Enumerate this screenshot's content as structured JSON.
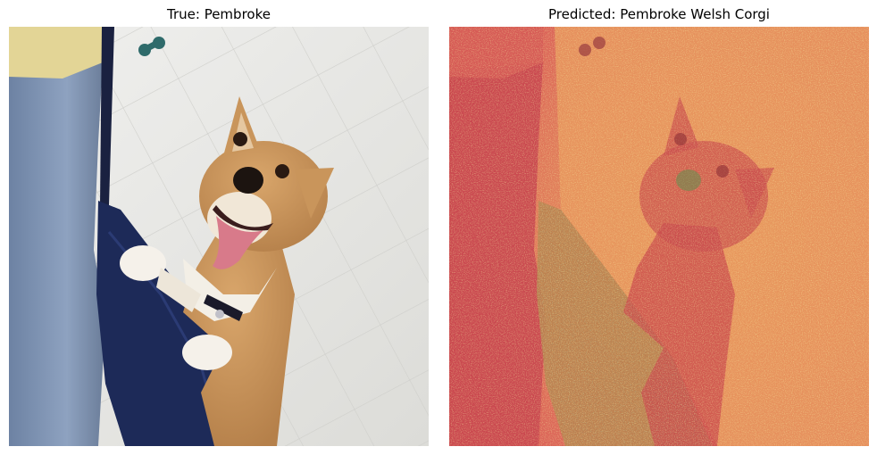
{
  "figure": {
    "left_panel": {
      "title": "True: Pembroke"
    },
    "right_panel": {
      "title": "Predicted: Pembroke Welsh Corgi"
    }
  },
  "colors": {
    "floor": "#e6e6e3",
    "jeans": "#7f93b3",
    "shirt": "#e3d596",
    "gate_fabric": "#1d2a58",
    "corgi_fur": "#c9955b",
    "corgi_white": "#f3efe6",
    "tongue": "#d87a8a",
    "heat_base": "#d95b58",
    "heat_warm": "#e9a35c",
    "heat_hot": "#e8df66",
    "heat_cool": "#3f9b72"
  }
}
